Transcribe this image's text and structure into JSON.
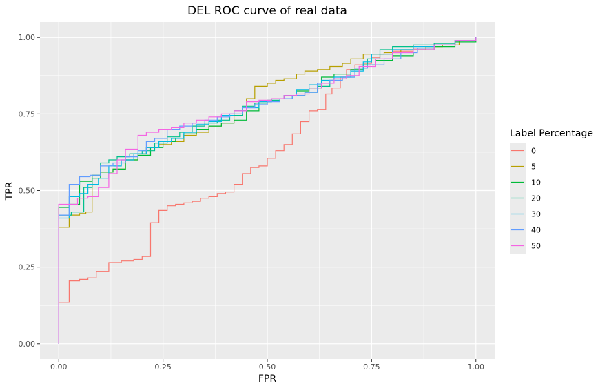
{
  "chart_data": {
    "type": "line",
    "title": "DEL ROC curve of real data",
    "xlabel": "FPR",
    "ylabel": "TPR",
    "xlim": [
      -0.045,
      1.045
    ],
    "ylim": [
      -0.05,
      1.05
    ],
    "xticks": [
      0.0,
      0.25,
      0.5,
      0.75,
      1.0
    ],
    "xtick_labels": [
      "0.00",
      "0.25",
      "0.50",
      "0.75",
      "1.00"
    ],
    "yticks": [
      0.0,
      0.25,
      0.5,
      0.75,
      1.0
    ],
    "ytick_labels": [
      "0.00",
      "0.25",
      "0.50",
      "0.75",
      "1.00"
    ],
    "grid": true,
    "step": true,
    "legend_title": "Label Percentage",
    "legend_position": "right",
    "series": [
      {
        "name": "0",
        "color": "#F8766D",
        "x": [
          0.0,
          0.0,
          0.02,
          0.025,
          0.05,
          0.07,
          0.09,
          0.12,
          0.15,
          0.18,
          0.2,
          0.22,
          0.24,
          0.26,
          0.28,
          0.3,
          0.32,
          0.34,
          0.36,
          0.38,
          0.4,
          0.42,
          0.44,
          0.46,
          0.48,
          0.5,
          0.52,
          0.54,
          0.56,
          0.58,
          0.6,
          0.62,
          0.64,
          0.655,
          0.675,
          0.69,
          0.71,
          0.73,
          0.75,
          0.77,
          0.8,
          0.85,
          0.9,
          0.95,
          1.0
        ],
        "y": [
          0.0,
          0.135,
          0.135,
          0.205,
          0.21,
          0.215,
          0.235,
          0.265,
          0.27,
          0.275,
          0.285,
          0.395,
          0.435,
          0.45,
          0.455,
          0.46,
          0.465,
          0.475,
          0.48,
          0.49,
          0.495,
          0.52,
          0.555,
          0.575,
          0.58,
          0.605,
          0.63,
          0.65,
          0.685,
          0.725,
          0.76,
          0.765,
          0.815,
          0.835,
          0.87,
          0.895,
          0.91,
          0.915,
          0.935,
          0.945,
          0.955,
          0.965,
          0.975,
          0.99,
          1.0
        ]
      },
      {
        "name": "5",
        "color": "#B79F00",
        "x": [
          0.0,
          0.0,
          0.02,
          0.025,
          0.05,
          0.065,
          0.08,
          0.1,
          0.13,
          0.16,
          0.19,
          0.21,
          0.24,
          0.27,
          0.3,
          0.33,
          0.36,
          0.39,
          0.42,
          0.45,
          0.47,
          0.5,
          0.52,
          0.54,
          0.57,
          0.59,
          0.62,
          0.65,
          0.68,
          0.7,
          0.73,
          0.78,
          0.82,
          0.88,
          0.92,
          0.96,
          1.0
        ],
        "y": [
          0.0,
          0.38,
          0.38,
          0.42,
          0.425,
          0.43,
          0.55,
          0.56,
          0.57,
          0.6,
          0.62,
          0.64,
          0.65,
          0.66,
          0.68,
          0.69,
          0.71,
          0.72,
          0.76,
          0.8,
          0.84,
          0.85,
          0.86,
          0.865,
          0.88,
          0.89,
          0.895,
          0.905,
          0.915,
          0.93,
          0.945,
          0.95,
          0.96,
          0.97,
          0.975,
          0.99,
          1.0
        ]
      },
      {
        "name": "10",
        "color": "#00BA38",
        "x": [
          0.0,
          0.0,
          0.025,
          0.05,
          0.08,
          0.1,
          0.13,
          0.16,
          0.19,
          0.22,
          0.25,
          0.28,
          0.3,
          0.33,
          0.36,
          0.39,
          0.42,
          0.45,
          0.48,
          0.51,
          0.54,
          0.57,
          0.6,
          0.63,
          0.66,
          0.7,
          0.73,
          0.76,
          0.8,
          0.85,
          0.9,
          0.95,
          1.0
        ],
        "y": [
          0.0,
          0.445,
          0.455,
          0.53,
          0.54,
          0.56,
          0.57,
          0.6,
          0.615,
          0.64,
          0.66,
          0.67,
          0.685,
          0.7,
          0.71,
          0.72,
          0.73,
          0.76,
          0.79,
          0.8,
          0.81,
          0.825,
          0.835,
          0.87,
          0.88,
          0.895,
          0.91,
          0.925,
          0.94,
          0.96,
          0.97,
          0.985,
          1.0
        ]
      },
      {
        "name": "20",
        "color": "#00C08B",
        "x": [
          0.0,
          0.0,
          0.03,
          0.06,
          0.08,
          0.1,
          0.12,
          0.14,
          0.17,
          0.2,
          0.23,
          0.26,
          0.29,
          0.32,
          0.35,
          0.38,
          0.41,
          0.44,
          0.47,
          0.5,
          0.53,
          0.56,
          0.59,
          0.62,
          0.65,
          0.68,
          0.71,
          0.74,
          0.77,
          0.8,
          0.85,
          0.9,
          0.95,
          1.0
        ],
        "y": [
          0.0,
          0.42,
          0.43,
          0.51,
          0.55,
          0.59,
          0.6,
          0.61,
          0.62,
          0.63,
          0.655,
          0.675,
          0.69,
          0.71,
          0.72,
          0.73,
          0.745,
          0.775,
          0.785,
          0.795,
          0.8,
          0.81,
          0.82,
          0.84,
          0.86,
          0.87,
          0.9,
          0.93,
          0.96,
          0.97,
          0.975,
          0.98,
          0.99,
          1.0
        ]
      },
      {
        "name": "30",
        "color": "#00B9E3",
        "x": [
          0.0,
          0.0,
          0.025,
          0.05,
          0.07,
          0.095,
          0.12,
          0.15,
          0.18,
          0.21,
          0.24,
          0.27,
          0.3,
          0.33,
          0.36,
          0.39,
          0.42,
          0.45,
          0.48,
          0.51,
          0.54,
          0.57,
          0.6,
          0.63,
          0.66,
          0.7,
          0.73,
          0.75,
          0.8,
          0.85,
          0.9,
          0.95,
          1.0
        ],
        "y": [
          0.0,
          0.41,
          0.48,
          0.49,
          0.52,
          0.54,
          0.58,
          0.6,
          0.62,
          0.64,
          0.66,
          0.67,
          0.69,
          0.715,
          0.725,
          0.745,
          0.76,
          0.77,
          0.79,
          0.8,
          0.81,
          0.83,
          0.845,
          0.86,
          0.87,
          0.89,
          0.92,
          0.945,
          0.96,
          0.97,
          0.975,
          0.99,
          1.0
        ]
      },
      {
        "name": "40",
        "color": "#619CFF",
        "x": [
          0.0,
          0.0,
          0.025,
          0.05,
          0.075,
          0.1,
          0.13,
          0.16,
          0.19,
          0.21,
          0.23,
          0.26,
          0.29,
          0.32,
          0.35,
          0.38,
          0.41,
          0.44,
          0.47,
          0.5,
          0.53,
          0.56,
          0.59,
          0.62,
          0.65,
          0.68,
          0.71,
          0.74,
          0.78,
          0.82,
          0.86,
          0.9,
          0.95,
          1.0
        ],
        "y": [
          0.0,
          0.42,
          0.52,
          0.545,
          0.55,
          0.58,
          0.59,
          0.61,
          0.63,
          0.66,
          0.67,
          0.7,
          0.71,
          0.72,
          0.73,
          0.74,
          0.75,
          0.77,
          0.78,
          0.79,
          0.8,
          0.81,
          0.82,
          0.85,
          0.86,
          0.87,
          0.9,
          0.91,
          0.93,
          0.95,
          0.965,
          0.975,
          0.99,
          1.0
        ]
      },
      {
        "name": "50",
        "color": "#F564E3",
        "x": [
          0.0,
          0.0,
          0.02,
          0.045,
          0.07,
          0.095,
          0.12,
          0.14,
          0.16,
          0.19,
          0.21,
          0.24,
          0.27,
          0.3,
          0.33,
          0.36,
          0.39,
          0.42,
          0.45,
          0.48,
          0.51,
          0.54,
          0.57,
          0.6,
          0.63,
          0.66,
          0.69,
          0.72,
          0.76,
          0.8,
          0.85,
          0.9,
          0.95,
          1.0
        ],
        "y": [
          0.0,
          0.455,
          0.455,
          0.475,
          0.48,
          0.51,
          0.555,
          0.6,
          0.635,
          0.68,
          0.69,
          0.7,
          0.705,
          0.72,
          0.73,
          0.74,
          0.75,
          0.76,
          0.79,
          0.795,
          0.8,
          0.81,
          0.815,
          0.835,
          0.85,
          0.865,
          0.875,
          0.905,
          0.93,
          0.95,
          0.96,
          0.975,
          0.99,
          1.0
        ]
      }
    ]
  }
}
